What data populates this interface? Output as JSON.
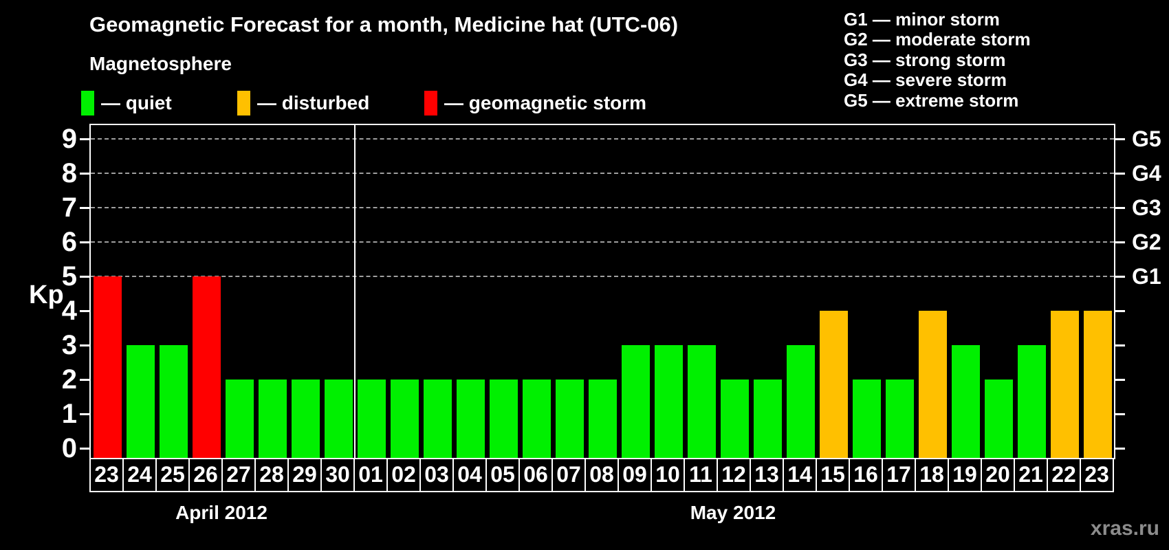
{
  "title": "Geomagnetic Forecast for a month, Medicine hat (UTC-06)",
  "legend": {
    "heading": "Magnetosphere",
    "items": [
      {
        "status": "quiet",
        "label": "— quiet",
        "color": "#00F000"
      },
      {
        "status": "disturbed",
        "label": "— disturbed",
        "color": "#FFC000"
      },
      {
        "status": "storm",
        "label": "— geomagnetic storm",
        "color": "#FF0000"
      }
    ]
  },
  "storm_scale_legend": [
    "G1 — minor storm",
    "G2 — moderate storm",
    "G3 — strong storm",
    "G4 — severe storm",
    "G5 — extreme storm"
  ],
  "watermark": "xras.ru",
  "colors": {
    "background": "#000000",
    "axis": "#ffffff",
    "grid": "#9f9f9f",
    "text": "#ffffff",
    "watermark": "#8c8c8c"
  },
  "chart_data": {
    "type": "bar",
    "title": "Geomagnetic Forecast for a month, Medicine hat (UTC-06)",
    "ylabel": "Kp",
    "ylim": [
      0,
      9.4
    ],
    "yticks": [
      0,
      1,
      2,
      3,
      4,
      5,
      6,
      7,
      8,
      9
    ],
    "gridlines_at": [
      5,
      6,
      7,
      8,
      9
    ],
    "grid": "dashed, only at storm levels G1-G5",
    "right_axis": [
      {
        "value": 5,
        "label": "G1"
      },
      {
        "value": 6,
        "label": "G2"
      },
      {
        "value": 7,
        "label": "G3"
      },
      {
        "value": 8,
        "label": "G4"
      },
      {
        "value": 9,
        "label": "G5"
      }
    ],
    "months": [
      {
        "label": "April 2012",
        "days": 8
      },
      {
        "label": "May 2012",
        "days": 23
      }
    ],
    "categories": [
      "23",
      "24",
      "25",
      "26",
      "27",
      "28",
      "29",
      "30",
      "01",
      "02",
      "03",
      "04",
      "05",
      "06",
      "07",
      "08",
      "09",
      "10",
      "11",
      "12",
      "13",
      "14",
      "15",
      "16",
      "17",
      "18",
      "19",
      "20",
      "21",
      "22",
      "23"
    ],
    "values": [
      5,
      3,
      3,
      5,
      2,
      2,
      2,
      2,
      2,
      2,
      2,
      2,
      2,
      2,
      2,
      2,
      3,
      3,
      3,
      2,
      2,
      3,
      4,
      2,
      2,
      4,
      3,
      2,
      3,
      4,
      4
    ],
    "statuses": [
      "storm",
      "quiet",
      "quiet",
      "storm",
      "quiet",
      "quiet",
      "quiet",
      "quiet",
      "quiet",
      "quiet",
      "quiet",
      "quiet",
      "quiet",
      "quiet",
      "quiet",
      "quiet",
      "quiet",
      "quiet",
      "quiet",
      "quiet",
      "quiet",
      "quiet",
      "disturbed",
      "quiet",
      "quiet",
      "disturbed",
      "quiet",
      "quiet",
      "quiet",
      "disturbed",
      "disturbed"
    ],
    "status_colors": {
      "quiet": "#00F000",
      "disturbed": "#FFC000",
      "storm": "#FF0000"
    }
  }
}
